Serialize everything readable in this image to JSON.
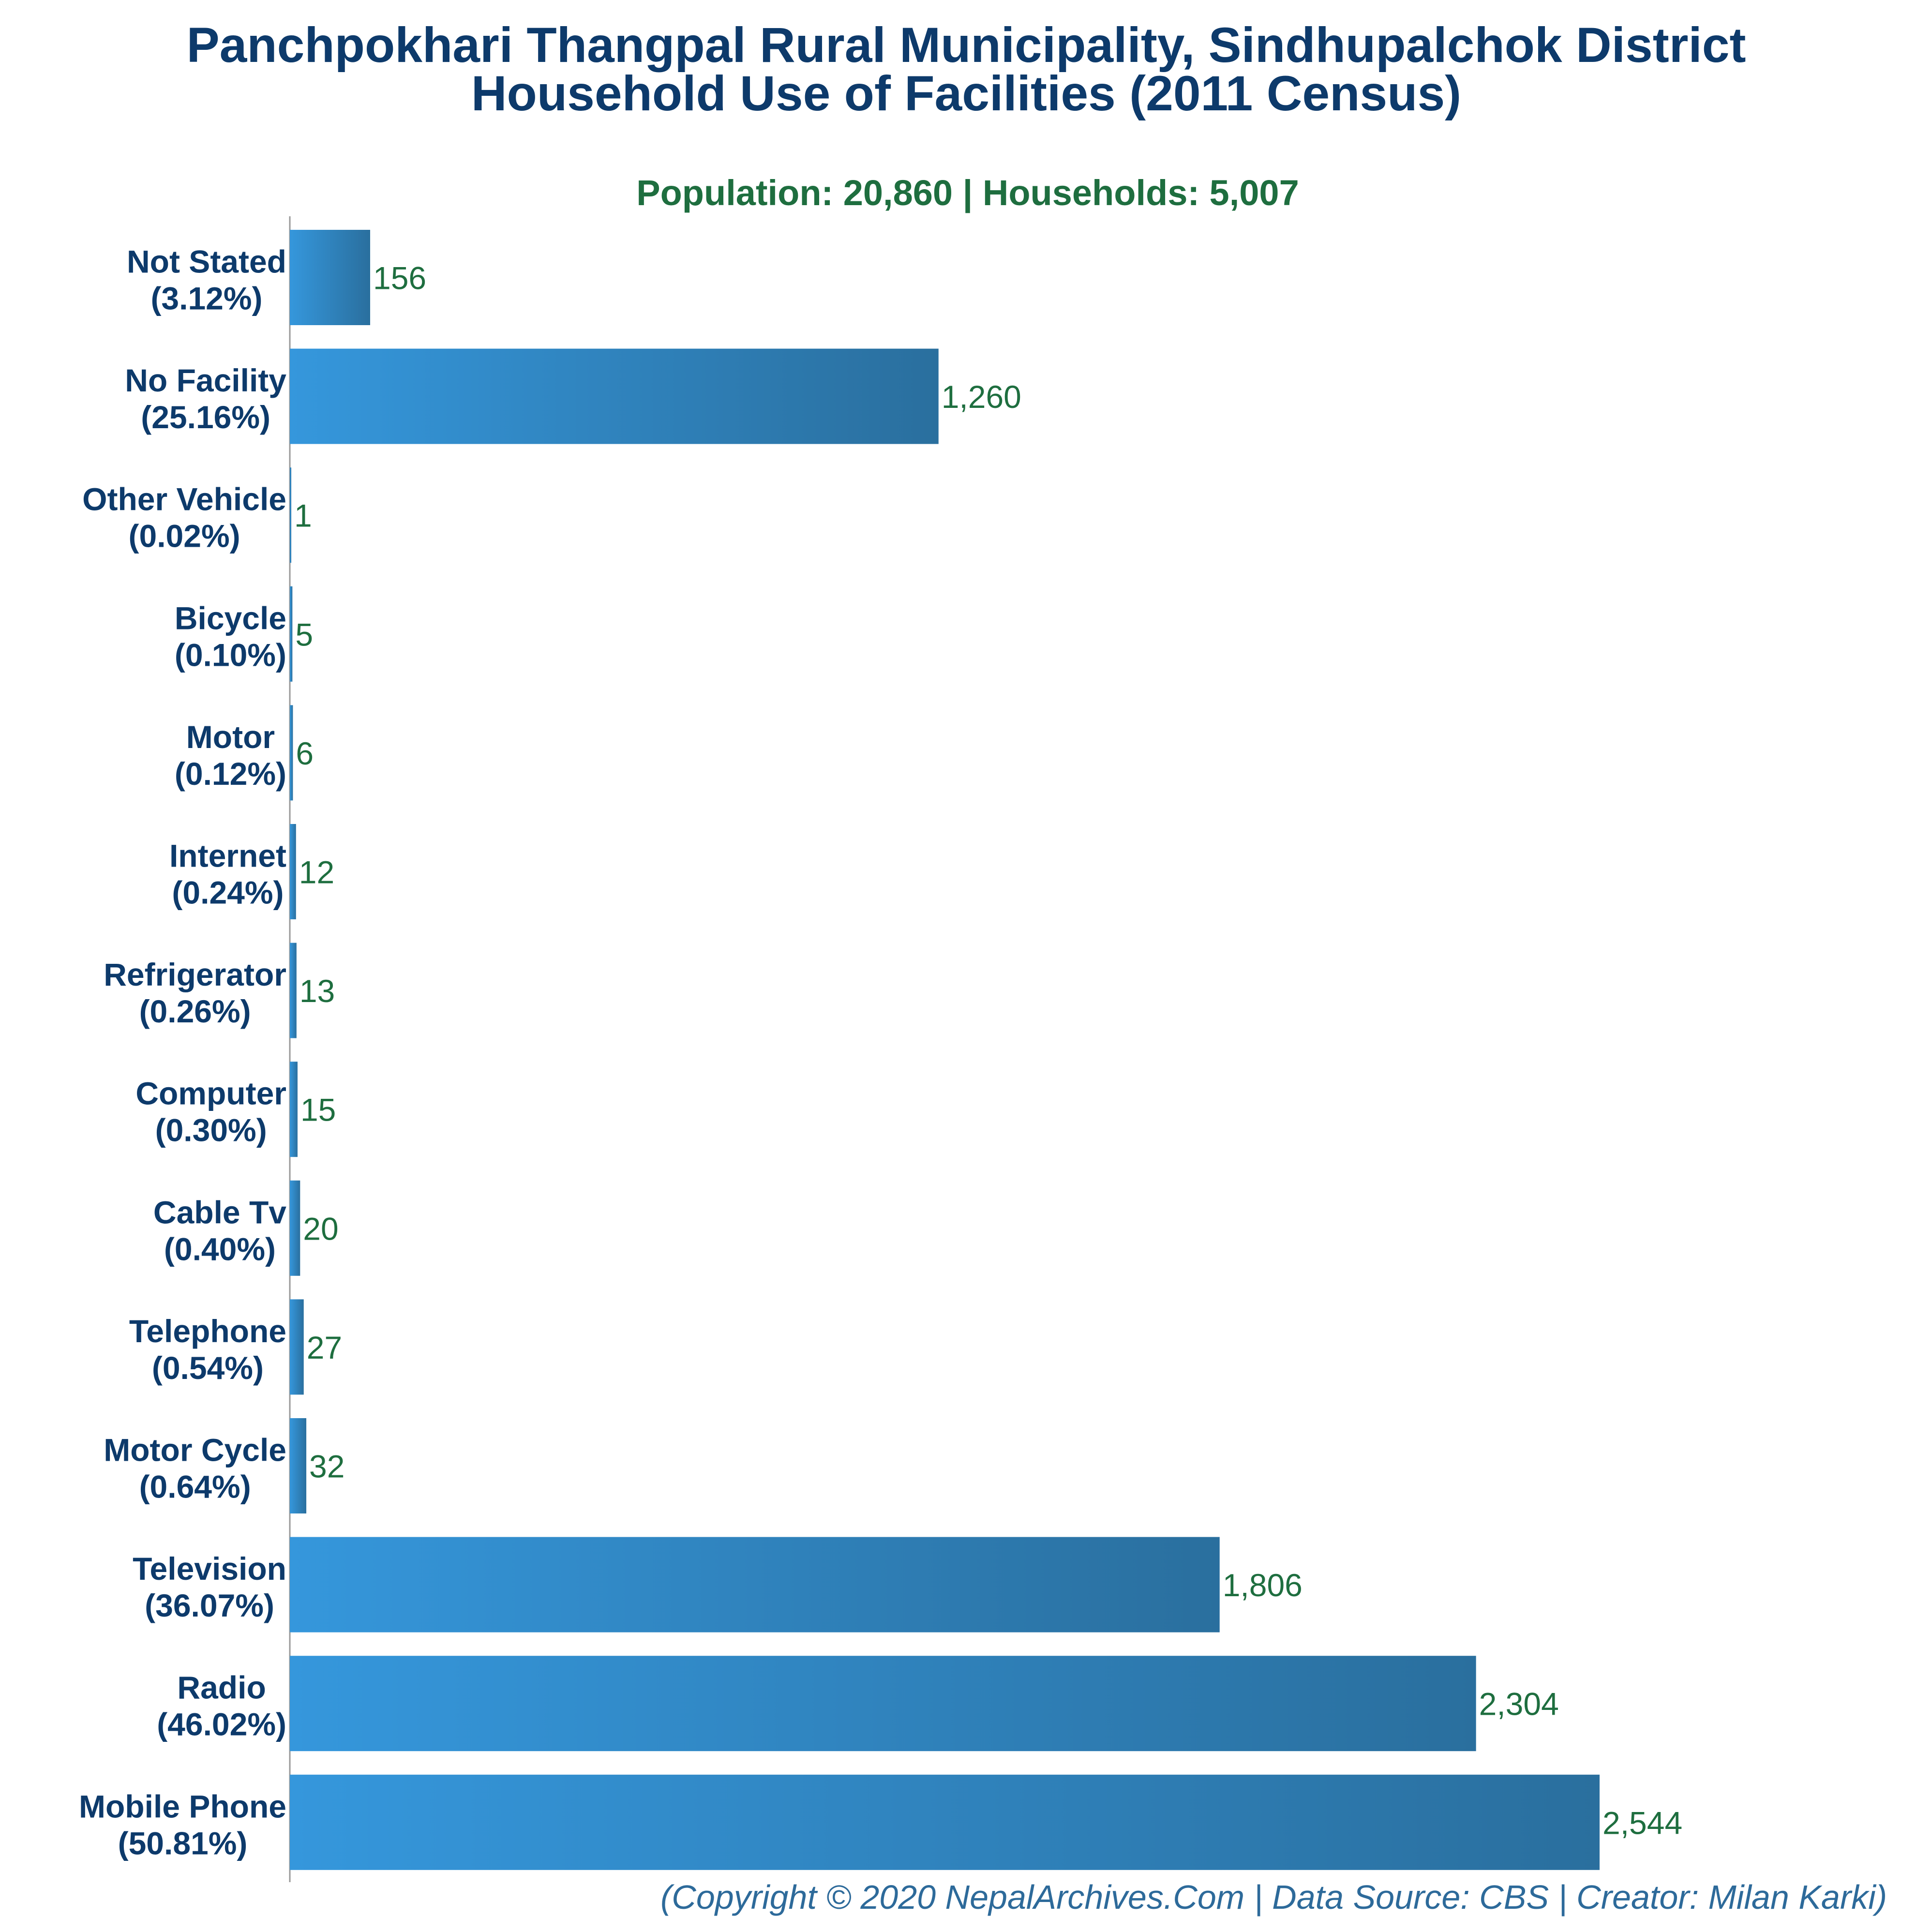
{
  "chart_data": {
    "type": "bar",
    "orientation": "horizontal",
    "title": "Panchpokhari Thangpal Rural Municipality, Sindhupalchok District",
    "title_line2": "Household Use of Facilities (2011 Census)",
    "subtitle": "Population: 20,860 | Households: 5,007",
    "footer": "(Copyright © 2020 NepalArchives.Com | Data Source: CBS | Creator: Milan Karki)",
    "categories": [
      "Not Stated",
      "No Facility",
      "Other Vehicle",
      "Bicycle",
      "Motor",
      "Internet",
      "Refrigerator",
      "Computer",
      "Cable Tv",
      "Telephone",
      "Motor Cycle",
      "Television",
      "Radio",
      "Mobile Phone"
    ],
    "percent_labels": [
      "(3.12%)",
      "(25.16%)",
      "(0.02%)",
      "(0.10%)",
      "(0.12%)",
      "(0.24%)",
      "(0.26%)",
      "(0.30%)",
      "(0.40%)",
      "(0.54%)",
      "(0.64%)",
      "(36.07%)",
      "(46.02%)",
      "(50.81%)"
    ],
    "values": [
      156,
      1260,
      1,
      5,
      6,
      12,
      13,
      15,
      20,
      27,
      32,
      1806,
      2304,
      2544
    ],
    "value_labels": [
      "156",
      "1,260",
      "1",
      "5",
      "6",
      "12",
      "13",
      "15",
      "20",
      "27",
      "32",
      "1,806",
      "2,304",
      "2,544"
    ],
    "xlim": [
      0,
      2544
    ],
    "grid": false,
    "legend": false,
    "colors": {
      "bar_light": "#3597dc",
      "bar_dark": "#2a6f9e",
      "title": "#0d3a6b",
      "subtitle": "#1e6e3f",
      "value_label": "#1e6e3f",
      "category_label": "#0d3a6b",
      "footer": "#2d6a9a",
      "axis": "#999999"
    }
  }
}
